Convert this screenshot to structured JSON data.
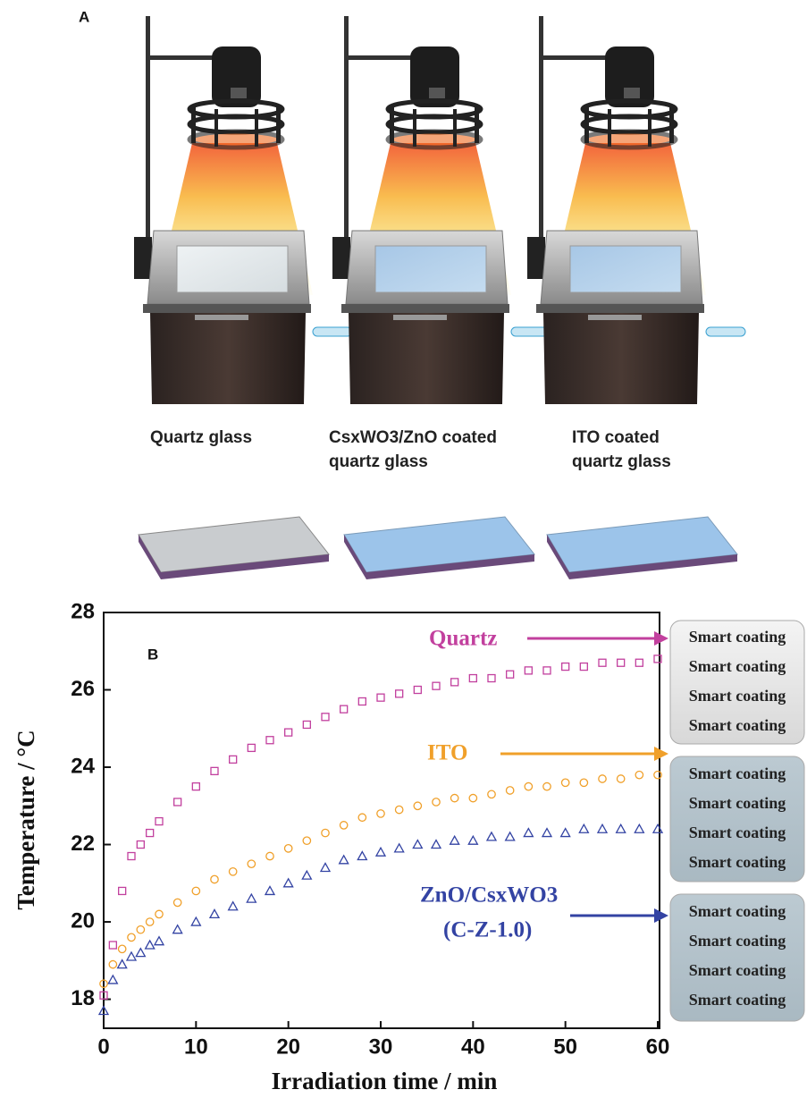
{
  "panel_a": {
    "label": "A",
    "captions": [
      [
        "Quartz  glass"
      ],
      [
        "CsxWO3/ZnO coated",
        "quartz glass"
      ],
      [
        "ITO coated",
        "quartz glass"
      ]
    ]
  },
  "coating_panels": [
    [
      "Smart coating",
      "Smart coating",
      "Smart coating",
      "Smart coating"
    ],
    [
      "Smart coating",
      "Smart coating",
      "Smart coating",
      "Smart coating"
    ],
    [
      "Smart coating",
      "Smart coating",
      "Smart coating",
      "Smart coating"
    ]
  ],
  "chart_data": {
    "type": "scatter",
    "panel_label": "B",
    "x_label": "Irradiation time / min",
    "y_label": "Temperature / °C",
    "x": [
      0,
      1,
      2,
      3,
      4,
      5,
      6,
      8,
      10,
      12,
      14,
      16,
      18,
      20,
      22,
      24,
      26,
      28,
      30,
      32,
      34,
      36,
      38,
      40,
      42,
      44,
      46,
      48,
      50,
      52,
      54,
      56,
      58,
      60
    ],
    "series": [
      {
        "name": "Quartz",
        "color": "#c2409e",
        "marker": "square",
        "values": [
          18.1,
          19.4,
          20.8,
          21.7,
          22.0,
          22.3,
          22.6,
          23.1,
          23.5,
          23.9,
          24.2,
          24.5,
          24.7,
          24.9,
          25.1,
          25.3,
          25.5,
          25.7,
          25.8,
          25.9,
          26.0,
          26.1,
          26.2,
          26.3,
          26.3,
          26.4,
          26.5,
          26.5,
          26.6,
          26.6,
          26.7,
          26.7,
          26.7,
          26.8
        ]
      },
      {
        "name": "ITO",
        "color": "#f0a02a",
        "marker": "circle",
        "values": [
          18.4,
          18.9,
          19.3,
          19.6,
          19.8,
          20.0,
          20.2,
          20.5,
          20.8,
          21.1,
          21.3,
          21.5,
          21.7,
          21.9,
          22.1,
          22.3,
          22.5,
          22.7,
          22.8,
          22.9,
          23.0,
          23.1,
          23.2,
          23.2,
          23.3,
          23.4,
          23.5,
          23.5,
          23.6,
          23.6,
          23.7,
          23.7,
          23.8,
          23.8
        ]
      },
      {
        "name": "ZnO/CsxWO3",
        "color": "#3343a3",
        "marker": "triangle",
        "values": [
          17.7,
          18.5,
          18.9,
          19.1,
          19.2,
          19.4,
          19.5,
          19.8,
          20.0,
          20.2,
          20.4,
          20.6,
          20.8,
          21.0,
          21.2,
          21.4,
          21.6,
          21.7,
          21.8,
          21.9,
          22.0,
          22.0,
          22.1,
          22.1,
          22.2,
          22.2,
          22.3,
          22.3,
          22.3,
          22.4,
          22.4,
          22.4,
          22.4,
          22.4
        ]
      }
    ],
    "annotation": "(C-Z-1.0)",
    "xlim": [
      0,
      60
    ],
    "xticks": [
      0,
      10,
      20,
      30,
      40,
      50,
      60
    ],
    "ylim": [
      17.25,
      28
    ],
    "yticks": [
      18,
      20,
      22,
      24,
      26,
      28
    ]
  }
}
